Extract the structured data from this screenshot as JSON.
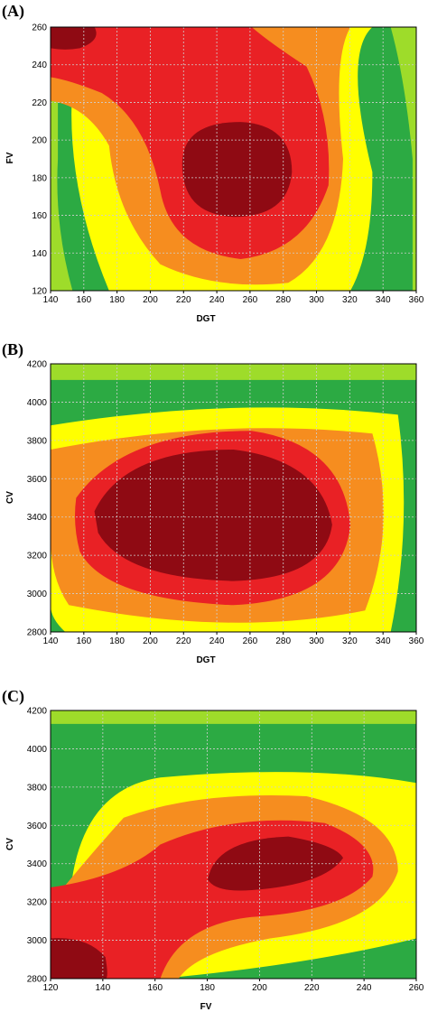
{
  "colors": {
    "level_0": "#ffffff",
    "level_1": "#9edc2a",
    "level_2": "#2caa43",
    "level_3": "#ffff00",
    "level_4": "#f68d1f",
    "level_5": "#e92125",
    "level_6": "#8f0a13"
  },
  "chart_data": [
    {
      "type": "heatmap",
      "panel_label": "(A)",
      "xlabel": "DGT",
      "ylabel": "FV",
      "xlim": [
        140,
        360
      ],
      "ylim": [
        120,
        260
      ],
      "xticks": [
        140,
        160,
        180,
        200,
        220,
        240,
        260,
        280,
        300,
        320,
        340,
        360
      ],
      "yticks": [
        120,
        140,
        160,
        180,
        200,
        220,
        240,
        260
      ],
      "grid": true
    },
    {
      "type": "heatmap",
      "panel_label": "(B)",
      "xlabel": "DGT",
      "ylabel": "CV",
      "xlim": [
        140,
        360
      ],
      "ylim": [
        2800,
        4200
      ],
      "xticks": [
        140,
        160,
        180,
        200,
        220,
        240,
        260,
        280,
        300,
        320,
        340,
        360
      ],
      "yticks": [
        2800,
        3000,
        3200,
        3400,
        3600,
        3800,
        4000,
        4200
      ],
      "grid": true
    },
    {
      "type": "heatmap",
      "panel_label": "(C)",
      "xlabel": "FV",
      "ylabel": "CV",
      "xlim": [
        120,
        260
      ],
      "ylim": [
        2800,
        4200
      ],
      "xticks": [
        120,
        140,
        160,
        180,
        200,
        220,
        240,
        260
      ],
      "yticks": [
        2800,
        3000,
        3200,
        3400,
        3600,
        3800,
        4000,
        4200
      ],
      "grid": true
    }
  ]
}
